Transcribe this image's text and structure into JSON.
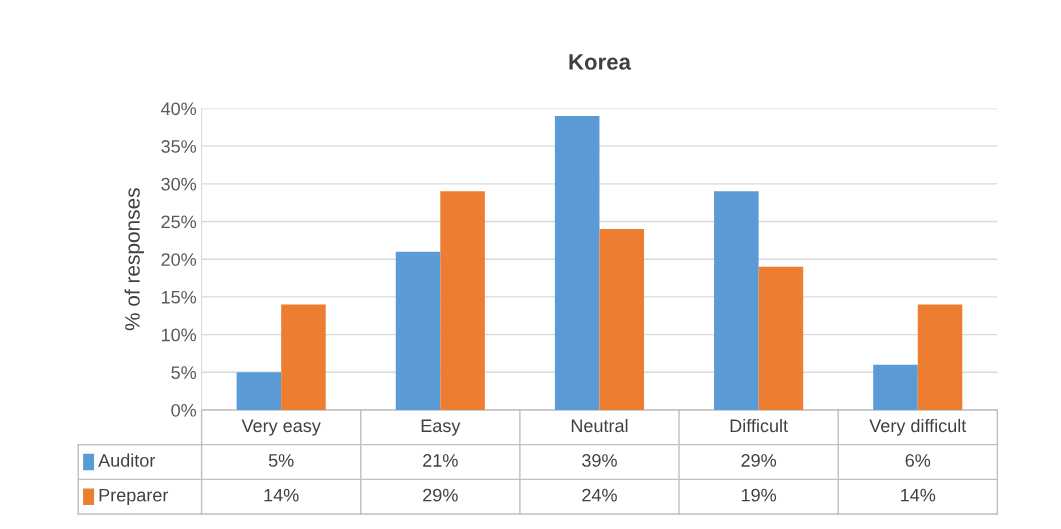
{
  "chart_data": {
    "type": "bar",
    "title": "Korea",
    "ylabel": "% of responses",
    "categories": [
      "Very easy",
      "Easy",
      "Neutral",
      "Difficult",
      "Very difficult"
    ],
    "series": [
      {
        "name": "Auditor",
        "color": "#5b9bd5",
        "values": [
          5,
          21,
          39,
          29,
          6
        ],
        "value_labels": [
          "5%",
          "21%",
          "39%",
          "29%",
          "6%"
        ]
      },
      {
        "name": "Preparer",
        "color": "#ed7d31",
        "values": [
          14,
          29,
          24,
          19,
          14
        ],
        "value_labels": [
          "14%",
          "29%",
          "24%",
          "19%",
          "14%"
        ]
      }
    ],
    "ylim": [
      0,
      40
    ],
    "yticks": [
      {
        "value": 0,
        "label": "0%"
      },
      {
        "value": 5,
        "label": "5%"
      },
      {
        "value": 10,
        "label": "10%"
      },
      {
        "value": 15,
        "label": "15%"
      },
      {
        "value": 20,
        "label": "20%"
      },
      {
        "value": 25,
        "label": "25%"
      },
      {
        "value": 30,
        "label": "30%"
      },
      {
        "value": 35,
        "label": "35%"
      },
      {
        "value": 40,
        "label": "40%"
      }
    ],
    "grid": "y",
    "legend": "bottom"
  }
}
